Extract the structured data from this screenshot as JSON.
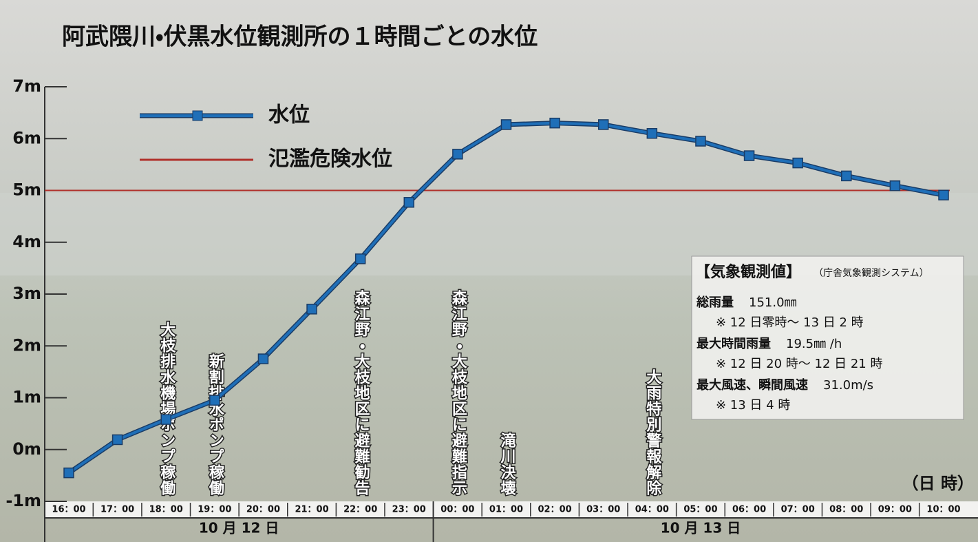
{
  "chart_data": {
    "type": "line",
    "title": "阿武隈川・伏黒水位観測所の１時間ごとの水位",
    "categories": [
      "16：00",
      "17：00",
      "18：00",
      "19：00",
      "20：00",
      "21：00",
      "22：00",
      "23：00",
      "00：00",
      "01：00",
      "02：00",
      "03：00",
      "04：00",
      "05：00",
      "06：00",
      "07：00",
      "08：00",
      "09：00",
      "10：00"
    ],
    "dates": [
      {
        "label": "10 月 12 日",
        "from": 0,
        "to": 7
      },
      {
        "label": "10 月 13 日",
        "from": 8,
        "to": 18
      }
    ],
    "x_label": "（日 時）",
    "series": [
      {
        "name": "水位",
        "color": "#1f6fb8",
        "values": [
          -0.45,
          0.19,
          0.58,
          0.95,
          1.75,
          2.71,
          3.68,
          4.77,
          5.7,
          6.27,
          6.3,
          6.27,
          6.1,
          5.95,
          5.67,
          5.53,
          5.28,
          5.09,
          4.91
        ]
      }
    ],
    "reference_lines": [
      {
        "name": "氾濫危険水位",
        "value": 5,
        "color": "#b0302a"
      }
    ],
    "ylim": [
      -1,
      7
    ],
    "yticks": [
      {
        "value": -1,
        "label": "-1m"
      },
      {
        "value": 0,
        "label": "0m"
      },
      {
        "value": 1,
        "label": "1m"
      },
      {
        "value": 2,
        "label": "2m"
      },
      {
        "value": 3,
        "label": "3m"
      },
      {
        "value": 4,
        "label": "4m"
      },
      {
        "value": 5,
        "label": "5m"
      },
      {
        "value": 6,
        "label": "6m"
      },
      {
        "value": 7,
        "label": "7m"
      }
    ],
    "annotations": [
      {
        "text": "大枝排水機場ポンプ稼働",
        "at": 2
      },
      {
        "text": "新割排水ポンプ稼働",
        "at": 3
      },
      {
        "text": "森江野・大枝地区に避難勧告",
        "at": 6
      },
      {
        "text": "森江野・大枝地区に避難指示",
        "at": 8
      },
      {
        "text": "滝川決壊",
        "at": 9
      },
      {
        "text": "大雨特別警報解除",
        "at": 12
      }
    ],
    "info_box": {
      "title": "【気象観測値】",
      "source": "（庁舎気象観測システム）",
      "items": [
        {
          "label": "総雨量",
          "value": "151.0㎜",
          "note": "※ 12 日零時～ 13 日 2 時"
        },
        {
          "label": "最大時間雨量",
          "value": "19.5㎜ /h",
          "note": "※ 12 日 20 時～ 12 日 21 時"
        },
        {
          "label": "最大風速、瞬間風速",
          "value": "31.0m/s",
          "note": "※ 13 日 4 時"
        }
      ]
    }
  }
}
